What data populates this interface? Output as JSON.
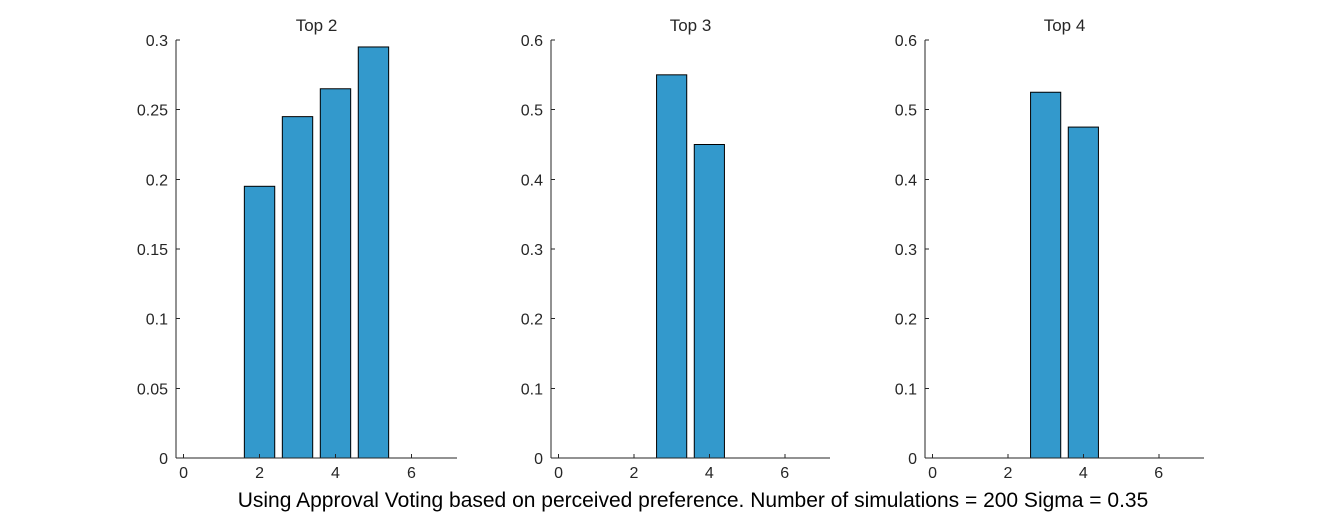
{
  "figure": {
    "caption": "Using Approval Voting based on perceived preference. Number of simulations = 200 Sigma = 0.35",
    "bar_color": "#3399cc"
  },
  "chart_data": [
    {
      "type": "bar",
      "title": "Top 2",
      "xlabel": "",
      "ylabel": "",
      "x": [
        1,
        2,
        3,
        4,
        5,
        6
      ],
      "values": [
        0,
        0.195,
        0.245,
        0.265,
        0.295,
        0
      ],
      "xlim": [
        -0.2,
        7.2
      ],
      "ylim": [
        0,
        0.3
      ],
      "xticks": [
        0,
        2,
        4,
        6
      ],
      "xtick_labels": [
        "0",
        "2",
        "4",
        "6"
      ],
      "yticks": [
        0,
        0.05,
        0.1,
        0.15,
        0.2,
        0.25,
        0.3
      ],
      "ytick_labels": [
        "0",
        "0.05",
        "0.1",
        "0.15",
        "0.2",
        "0.25",
        "0.3"
      ],
      "grid": false
    },
    {
      "type": "bar",
      "title": "Top 3",
      "xlabel": "",
      "ylabel": "",
      "x": [
        1,
        2,
        3,
        4,
        5,
        6
      ],
      "values": [
        0,
        0,
        0.55,
        0.45,
        0,
        0
      ],
      "xlim": [
        -0.2,
        7.2
      ],
      "ylim": [
        0,
        0.6
      ],
      "xticks": [
        0,
        2,
        4,
        6
      ],
      "xtick_labels": [
        "0",
        "2",
        "4",
        "6"
      ],
      "yticks": [
        0,
        0.1,
        0.2,
        0.3,
        0.4,
        0.5,
        0.6
      ],
      "ytick_labels": [
        "0",
        "0.1",
        "0.2",
        "0.3",
        "0.4",
        "0.5",
        "0.6"
      ],
      "grid": false
    },
    {
      "type": "bar",
      "title": "Top 4",
      "xlabel": "",
      "ylabel": "",
      "x": [
        1,
        2,
        3,
        4,
        5,
        6
      ],
      "values": [
        0,
        0,
        0.525,
        0.475,
        0,
        0
      ],
      "xlim": [
        -0.2,
        7.2
      ],
      "ylim": [
        0,
        0.6
      ],
      "xticks": [
        0,
        2,
        4,
        6
      ],
      "xtick_labels": [
        "0",
        "2",
        "4",
        "6"
      ],
      "yticks": [
        0,
        0.1,
        0.2,
        0.3,
        0.4,
        0.5,
        0.6
      ],
      "ytick_labels": [
        "0",
        "0.1",
        "0.2",
        "0.3",
        "0.4",
        "0.5",
        "0.6"
      ],
      "grid": false
    }
  ]
}
